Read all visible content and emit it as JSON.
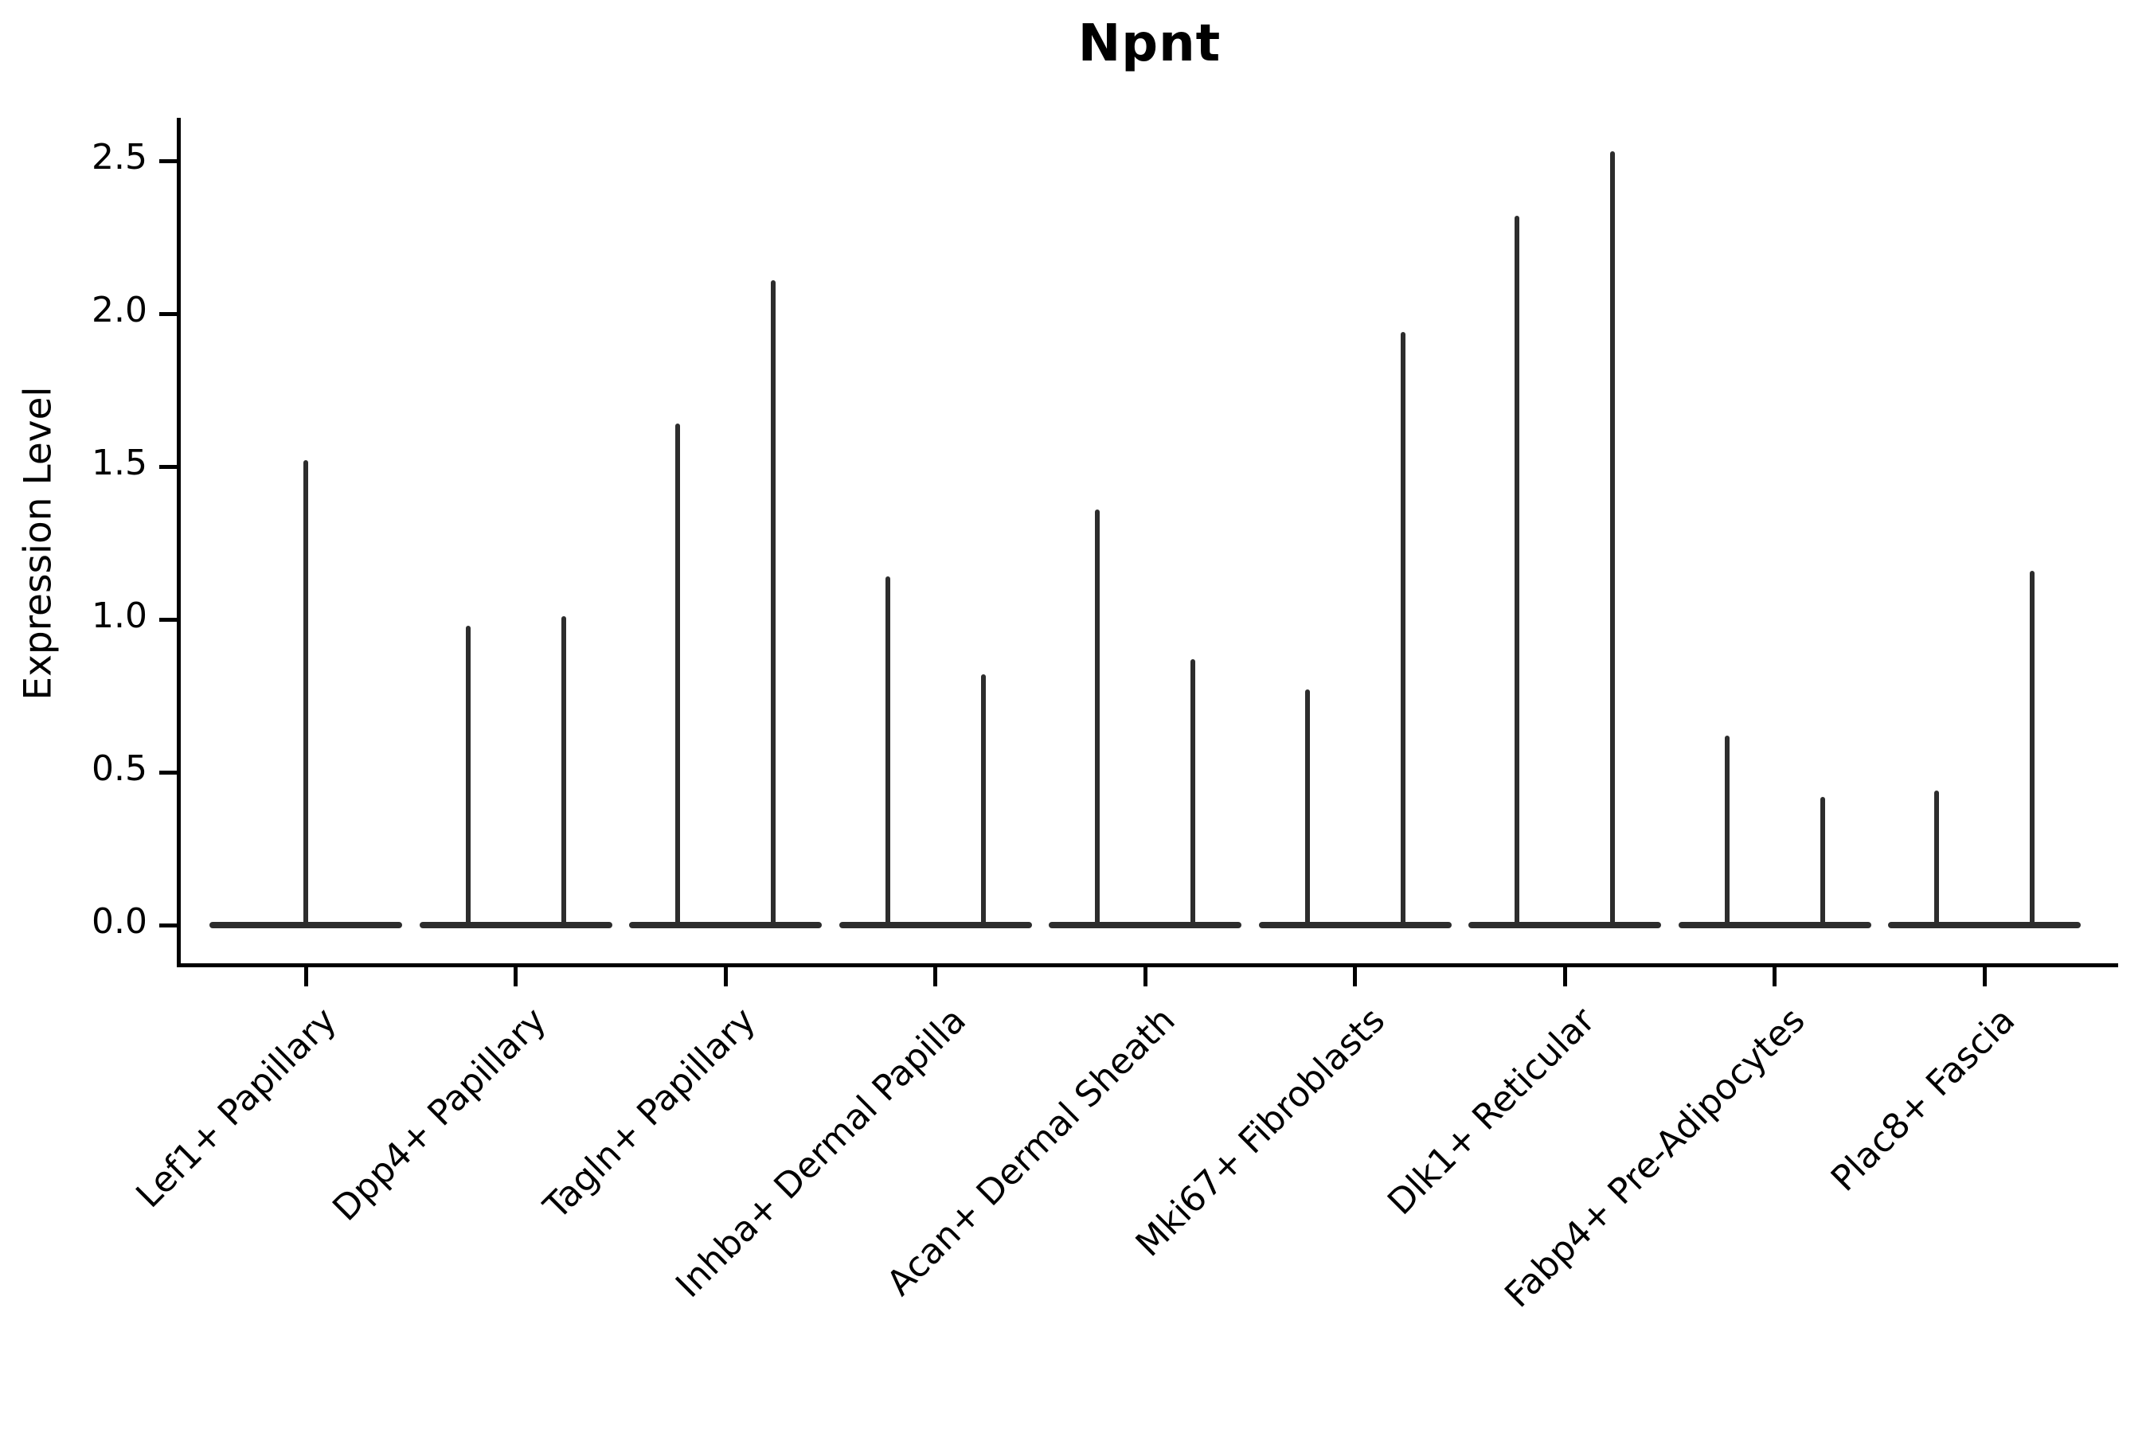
{
  "chart_data": {
    "type": "violin",
    "title": "Npnt",
    "ylabel": "Expression Level",
    "xlabel": "",
    "ylim": [
      -0.125,
      2.64
    ],
    "yticks": [
      0.0,
      0.5,
      1.0,
      1.5,
      2.0,
      2.5
    ],
    "ytick_labels": [
      "0.0",
      "0.5",
      "1.0",
      "1.5",
      "2.0",
      "2.5"
    ],
    "grid": false,
    "legend_position": "none",
    "violin_color": "#2d2d2d",
    "axis_color": "#000000",
    "background_color": "#ffffff",
    "categories": [
      "Lef1+ Papillary",
      "Dpp4+ Papillary",
      "Tagln+ Papillary",
      "Inhba+ Dermal Papilla",
      "Acan+ Dermal Sheath",
      "Mki67+ Fibroblasts",
      "Dlk1+ Reticular",
      "Fabp4+ Pre-Adipocytes",
      "Plac8+ Fascia"
    ],
    "series": [
      {
        "category": "Lef1+ Papillary",
        "peaks": [
          1.52
        ]
      },
      {
        "category": "Dpp4+ Papillary",
        "peaks": [
          0.98,
          1.01
        ]
      },
      {
        "category": "Tagln+ Papillary",
        "peaks": [
          1.64,
          2.11
        ]
      },
      {
        "category": "Inhba+ Dermal Papilla",
        "peaks": [
          1.14,
          0.82
        ]
      },
      {
        "category": "Acan+ Dermal Sheath",
        "peaks": [
          1.36,
          0.87
        ]
      },
      {
        "category": "Mki67+ Fibroblasts",
        "peaks": [
          0.77,
          1.94
        ]
      },
      {
        "category": "Dlk1+ Reticular",
        "peaks": [
          2.32,
          2.53
        ]
      },
      {
        "category": "Fabp4+ Pre-Adipocytes",
        "peaks": [
          0.62,
          0.42
        ]
      },
      {
        "category": "Plac8+ Fascia",
        "peaks": [
          0.44,
          1.16
        ]
      }
    ],
    "shape_note": "each violin is extremely wide at expression 0 (flat base bar) and a needle-thin spike rising to its peak value"
  }
}
